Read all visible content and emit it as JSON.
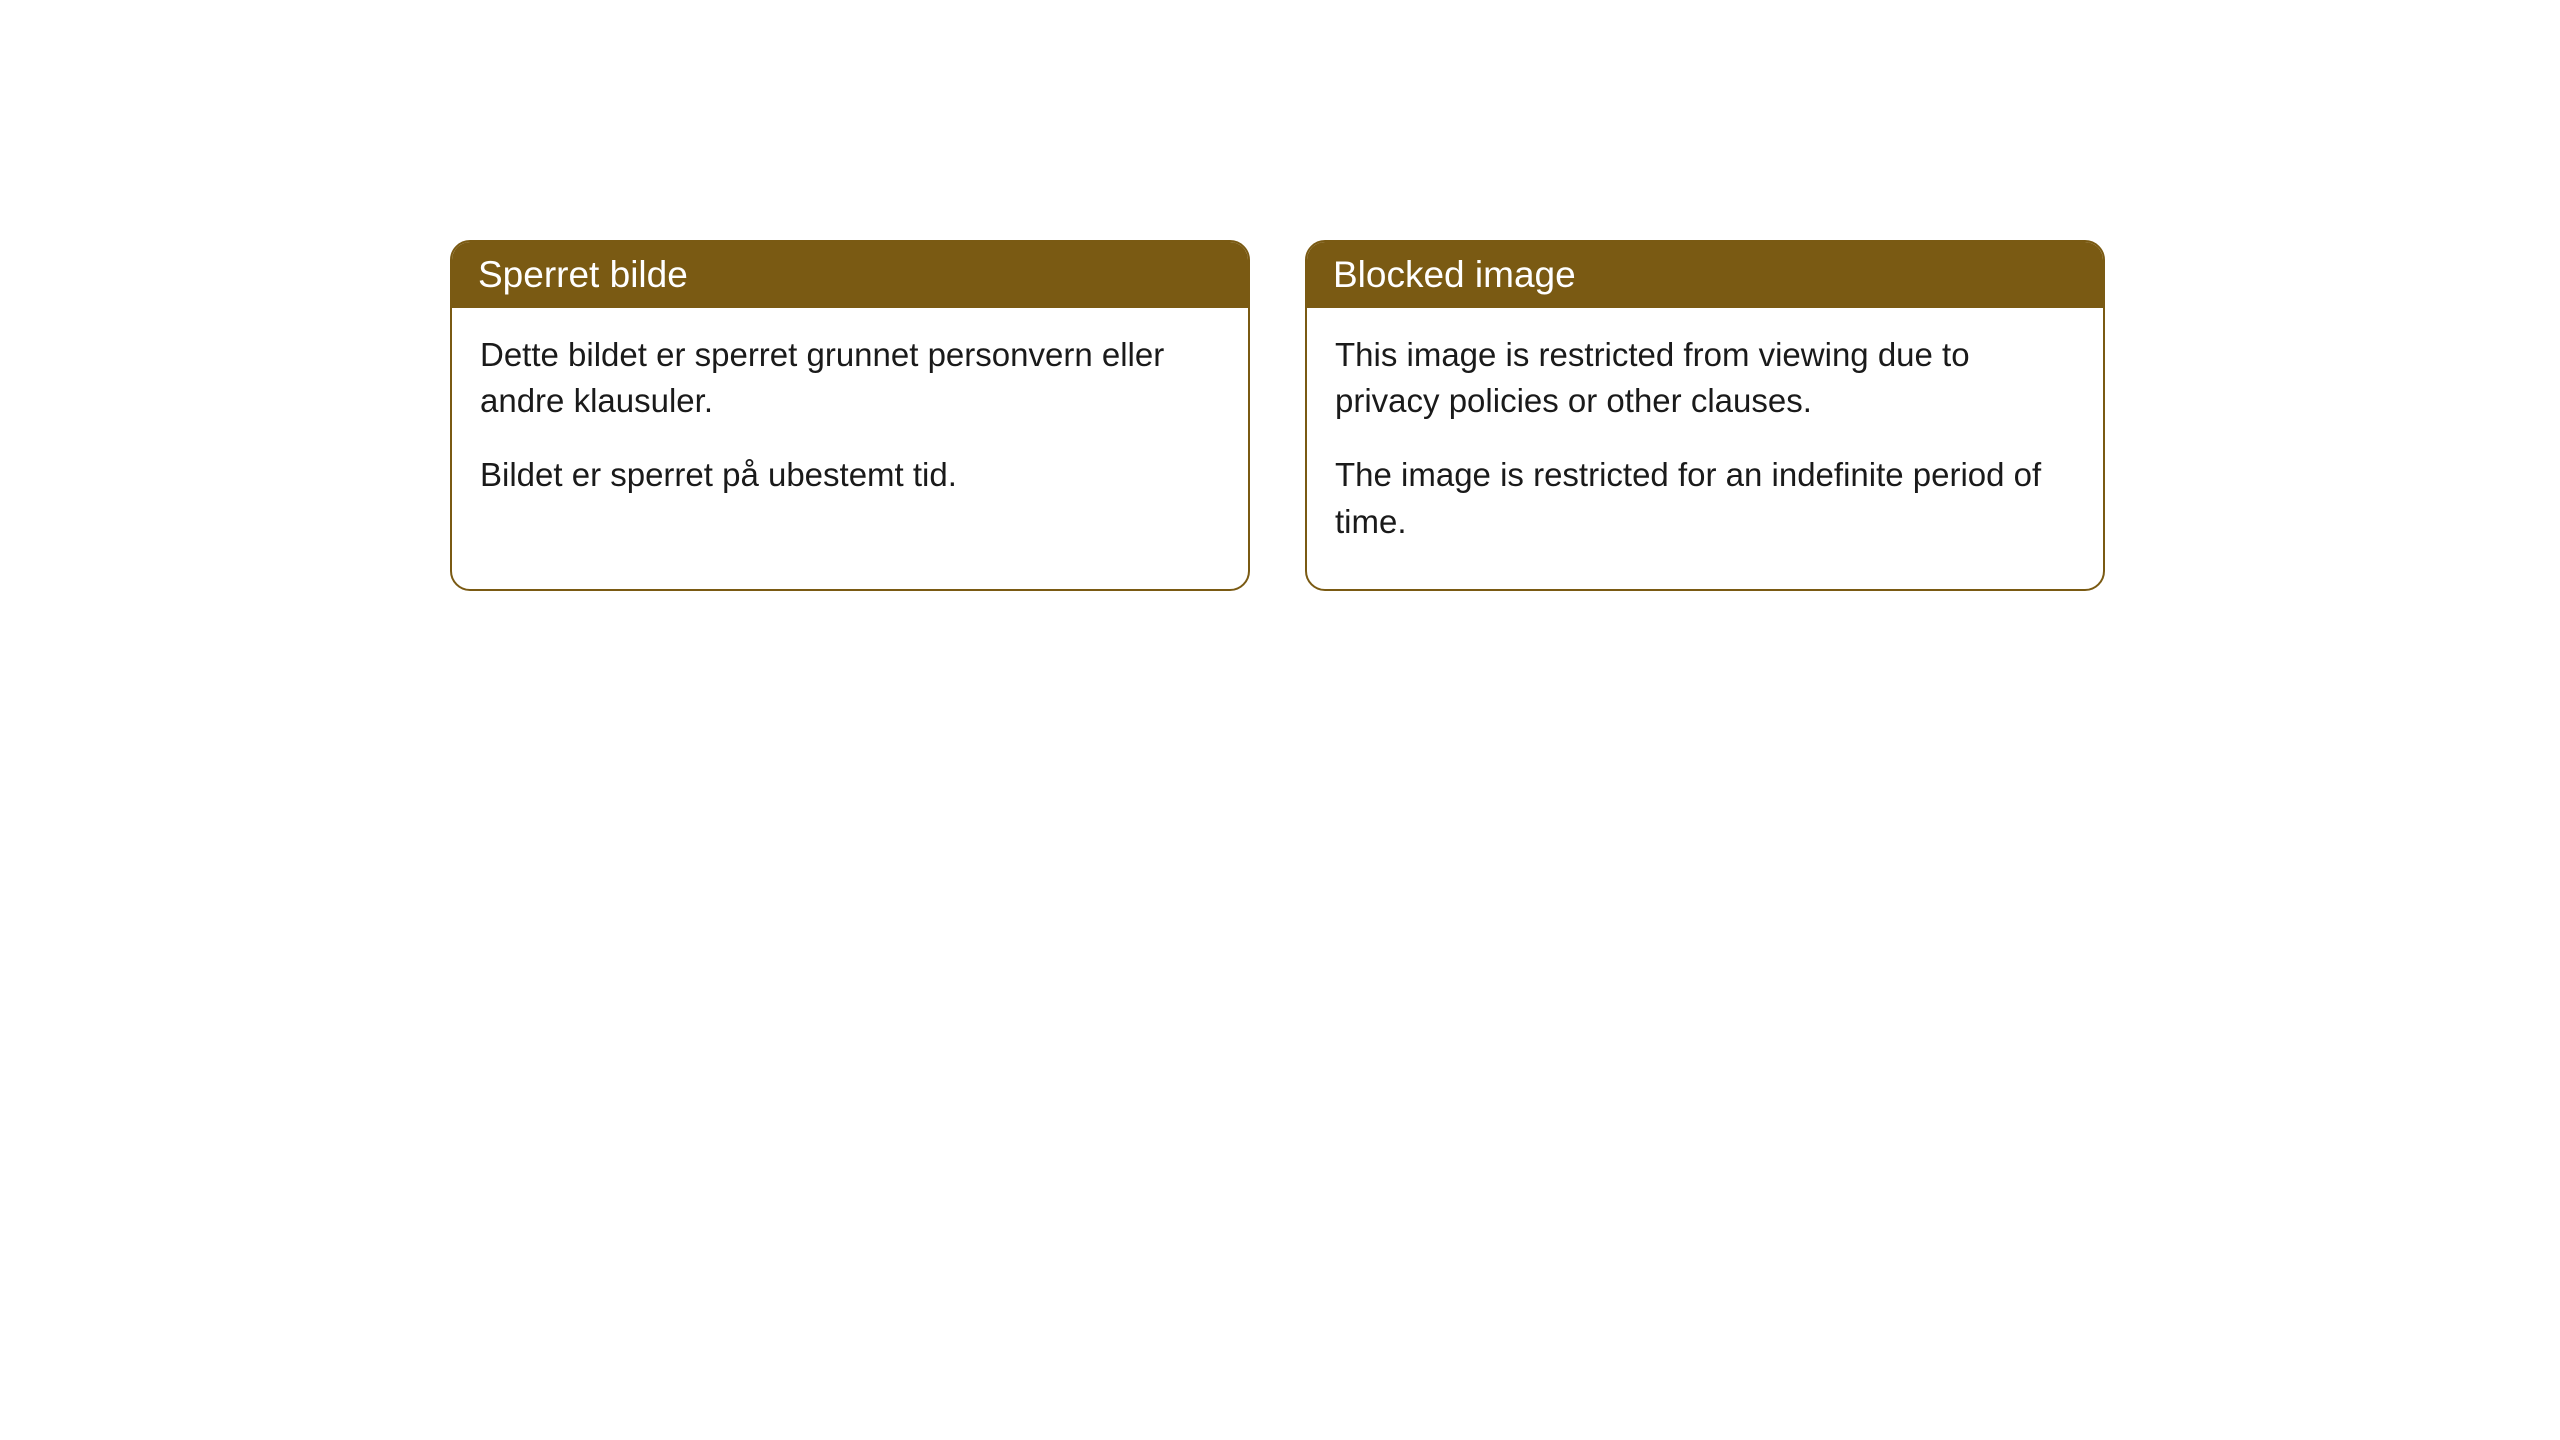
{
  "cards": [
    {
      "title": "Sperret bilde",
      "paragraph1": "Dette bildet er sperret grunnet personvern eller andre klausuler.",
      "paragraph2": "Bildet er sperret på ubestemt tid."
    },
    {
      "title": "Blocked image",
      "paragraph1": "This image is restricted from viewing due to privacy policies or other clauses.",
      "paragraph2": "The image is restricted for an indefinite period of time."
    }
  ],
  "styling": {
    "header_bg_color": "#7a5a13",
    "header_text_color": "#ffffff",
    "border_color": "#7a5a13",
    "body_bg_color": "#ffffff",
    "body_text_color": "#1a1a1a",
    "border_radius": 20,
    "header_fontsize": 37,
    "body_fontsize": 33
  }
}
